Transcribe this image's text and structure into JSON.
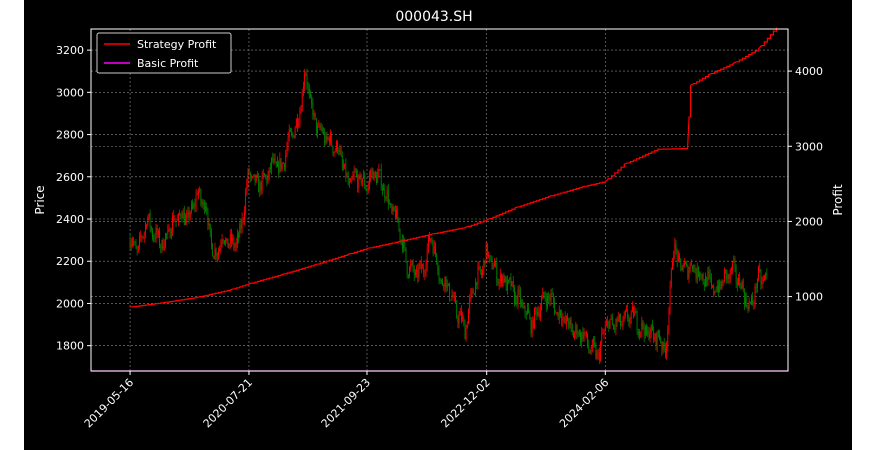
{
  "chart_data": {
    "type": "line",
    "title": "000043.SH",
    "xlabel": "",
    "ylabel": "Price",
    "y2label": "Profit",
    "xlim": [
      "2018-12-25",
      "2025-12-01"
    ],
    "ylim": [
      1680,
      3300
    ],
    "y2lim": [
      10,
      4560
    ],
    "x_ticks": [
      "2019-05-16",
      "2020-07-21",
      "2021-09-23",
      "2022-12-02",
      "2024-02-06"
    ],
    "y_ticks": [
      1800,
      2000,
      2200,
      2400,
      2600,
      2800,
      3000,
      3200
    ],
    "y2_ticks": [
      1000,
      2000,
      3000,
      4000
    ],
    "grid": true,
    "legend_position": "top-left",
    "legend": [
      {
        "name": "Strategy Profit",
        "color": "#ff0000"
      },
      {
        "name": "Basic Profit",
        "color": "#ff00ff"
      }
    ],
    "candle_colors": {
      "up": "#ff0000",
      "down": "#008000"
    },
    "price_series": {
      "name": "Price",
      "axis": "left",
      "x": [
        "2019-05-16",
        "2019-06-15",
        "2019-07-15",
        "2019-08-15",
        "2019-09-15",
        "2019-10-15",
        "2019-11-15",
        "2019-12-15",
        "2020-01-15",
        "2020-02-15",
        "2020-03-15",
        "2020-04-15",
        "2020-05-15",
        "2020-06-15",
        "2020-07-21",
        "2020-08-15",
        "2020-09-15",
        "2020-10-15",
        "2020-11-15",
        "2020-12-15",
        "2021-01-15",
        "2021-02-10",
        "2021-03-15",
        "2021-04-15",
        "2021-05-15",
        "2021-06-15",
        "2021-07-15",
        "2021-08-15",
        "2021-09-23",
        "2021-10-15",
        "2021-11-15",
        "2021-12-15",
        "2022-01-15",
        "2022-02-15",
        "2022-03-15",
        "2022-04-15",
        "2022-05-15",
        "2022-06-15",
        "2022-07-15",
        "2022-08-15",
        "2022-09-15",
        "2022-10-15",
        "2022-11-15",
        "2022-12-02",
        "2023-01-15",
        "2023-02-15",
        "2023-03-15",
        "2023-04-15",
        "2023-05-15",
        "2023-06-15",
        "2023-07-15",
        "2023-08-15",
        "2023-09-15",
        "2023-10-15",
        "2023-11-15",
        "2023-12-15",
        "2024-01-15",
        "2024-02-06",
        "2024-03-15",
        "2024-04-15",
        "2024-05-15",
        "2024-06-15",
        "2024-07-15",
        "2024-08-15",
        "2024-09-15",
        "2024-10-08",
        "2024-11-15",
        "2024-12-15",
        "2025-01-15",
        "2025-02-15",
        "2025-03-15",
        "2025-04-15",
        "2025-05-15",
        "2025-06-15",
        "2025-07-15",
        "2025-08-15",
        "2025-09-15"
      ],
      "values": [
        2300,
        2250,
        2400,
        2320,
        2280,
        2380,
        2420,
        2400,
        2520,
        2460,
        2220,
        2310,
        2280,
        2300,
        2620,
        2560,
        2580,
        2660,
        2640,
        2780,
        2860,
        3100,
        2860,
        2800,
        2760,
        2720,
        2560,
        2600,
        2560,
        2620,
        2580,
        2460,
        2380,
        2180,
        2140,
        2160,
        2330,
        2120,
        2080,
        1960,
        1880,
        2080,
        2160,
        2240,
        2120,
        2100,
        2040,
        1980,
        1900,
        2000,
        2040,
        1960,
        1920,
        1860,
        1860,
        1780,
        1760,
        1900,
        1900,
        1920,
        1950,
        1880,
        1860,
        1840,
        1780,
        2260,
        2160,
        2180,
        2140,
        2100,
        2060,
        2120,
        2160,
        2080,
        1970,
        2120,
        2110
      ]
    },
    "series": [
      {
        "name": "Strategy Profit",
        "axis": "right",
        "color": "#ff0000",
        "x": [
          "2019-05-16",
          "2019-09-15",
          "2020-01-15",
          "2020-05-15",
          "2020-07-21",
          "2020-11-15",
          "2021-03-15",
          "2021-07-15",
          "2021-09-23",
          "2022-01-15",
          "2022-05-15",
          "2022-09-15",
          "2022-12-02",
          "2023-03-15",
          "2023-07-15",
          "2023-11-15",
          "2024-02-06",
          "2024-04-15",
          "2024-08-15",
          "2024-12-01",
          "2024-12-12",
          "2025-02-15",
          "2025-05-15",
          "2025-08-15",
          "2025-10-20"
        ],
        "values": [
          860,
          920,
          990,
          1090,
          1170,
          1290,
          1420,
          1560,
          1640,
          1730,
          1830,
          1920,
          2020,
          2180,
          2330,
          2460,
          2530,
          2760,
          2960,
          2970,
          3810,
          3950,
          4100,
          4290,
          4580
        ]
      },
      {
        "name": "Basic Profit",
        "axis": "right",
        "color": "#ff00ff",
        "x": [
          "2018-12-25",
          "2025-12-01"
        ],
        "values": [
          10,
          10
        ]
      }
    ]
  }
}
